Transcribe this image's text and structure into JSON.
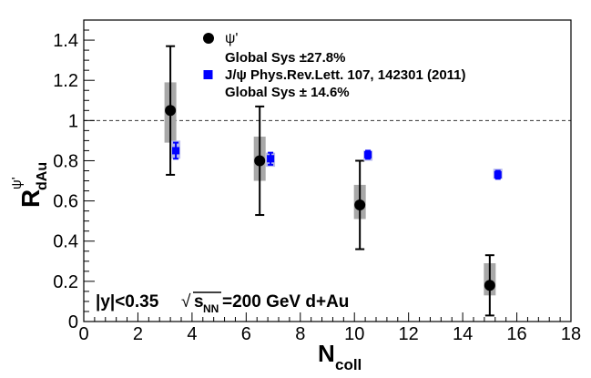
{
  "chart_data": {
    "type": "scatter",
    "title": "",
    "xlabel": {
      "main": "N",
      "sub": "coll"
    },
    "ylabel": {
      "main": "R",
      "sub": "dAu",
      "sup": "ψ'"
    },
    "xlim": [
      0,
      18
    ],
    "ylim": [
      0,
      1.5
    ],
    "x_major_ticks": [
      0,
      2,
      4,
      6,
      8,
      10,
      12,
      14,
      16,
      18
    ],
    "y_major_ticks": [
      0,
      0.2,
      0.4,
      0.6,
      0.8,
      1.0,
      1.2,
      1.4
    ],
    "x_tick_labels": [
      "0",
      "2",
      "4",
      "6",
      "8",
      "10",
      "12",
      "14",
      "16",
      "18"
    ],
    "y_tick_labels": [
      "0",
      "0.2",
      "0.4",
      "0.6",
      "0.8",
      "1",
      "1.2",
      "1.4"
    ],
    "reference_line": {
      "y": 1.0,
      "style": "dashed"
    },
    "grid": false,
    "legend_position": "top",
    "series": [
      {
        "name": "ψ'",
        "marker": "circle",
        "color": "#000000",
        "sys_box_color": "#a8a8a8",
        "points": [
          {
            "x": 3.2,
            "y": 1.05,
            "stat_low": 0.73,
            "stat_high": 1.37,
            "sys_low": 0.89,
            "sys_high": 1.19
          },
          {
            "x": 6.5,
            "y": 0.8,
            "stat_low": 0.53,
            "stat_high": 1.07,
            "sys_low": 0.7,
            "sys_high": 0.92
          },
          {
            "x": 10.2,
            "y": 0.58,
            "stat_low": 0.36,
            "stat_high": 0.8,
            "sys_low": 0.51,
            "sys_high": 0.68
          },
          {
            "x": 15.0,
            "y": 0.18,
            "stat_low": 0.03,
            "stat_high": 0.33,
            "sys_low": 0.13,
            "sys_high": 0.29
          }
        ]
      },
      {
        "name": "J/ψ Phys.Rev.Lett. 107, 142301 (2011)",
        "marker": "square",
        "color": "#0000ff",
        "sys_box_color": "#b7b9ec",
        "points": [
          {
            "x": 3.4,
            "y": 0.85,
            "stat_low": 0.81,
            "stat_high": 0.89,
            "sys_low": 0.81,
            "sys_high": 0.9
          },
          {
            "x": 6.9,
            "y": 0.81,
            "stat_low": 0.78,
            "stat_high": 0.84,
            "sys_low": 0.77,
            "sys_high": 0.84
          },
          {
            "x": 10.5,
            "y": 0.83,
            "stat_low": 0.81,
            "stat_high": 0.85,
            "sys_low": 0.8,
            "sys_high": 0.85
          },
          {
            "x": 15.3,
            "y": 0.73,
            "stat_low": 0.71,
            "stat_high": 0.75,
            "sys_low": 0.71,
            "sys_high": 0.76
          }
        ]
      }
    ],
    "legend": [
      {
        "series": 0,
        "label": "ψ'",
        "sys_text": "Global Sys  ±27.8%"
      },
      {
        "series": 1,
        "label": "J/ψ Phys.Rev.Lett. 107, 142301 (2011)",
        "sys_text": "Global Sys  ± 14.6%"
      }
    ],
    "annotation": {
      "rapidity": "|y|<0.35",
      "sqrt_symbol": "√",
      "s_main": "s",
      "s_sub": "NN",
      "energy": "=200 GeV d+Au"
    }
  }
}
